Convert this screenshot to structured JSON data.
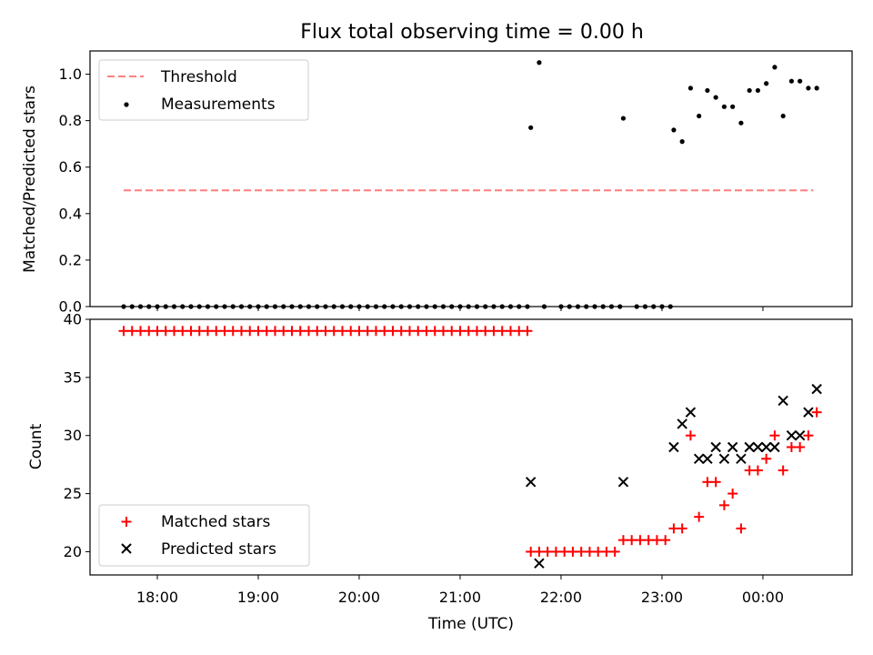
{
  "chart_data": [
    {
      "type": "scatter",
      "title": "Flux total observing time = 0.00 h",
      "ylabel": "Matched/Predicted stars",
      "xlabel": "",
      "x_is_time_utc": true,
      "xlim": [
        "17:20",
        "00:53"
      ],
      "ylim": [
        0,
        1.1
      ],
      "yticks": [
        "0.0",
        "0.2",
        "0.4",
        "0.6",
        "0.8",
        "1.0"
      ],
      "grid": false,
      "legend_loc": "upper left",
      "threshold": {
        "name": "Threshold",
        "value": 0.5,
        "x_range": [
          "17:40",
          "00:30"
        ],
        "color": "#ff7f7f",
        "style": "dashed"
      },
      "series": [
        {
          "name": "Measurements",
          "color": "#000000",
          "points": [
            [
              "17:40",
              0
            ],
            [
              "17:45",
              0
            ],
            [
              "17:50",
              0
            ],
            [
              "17:55",
              0
            ],
            [
              "18:00",
              0
            ],
            [
              "18:05",
              0
            ],
            [
              "18:10",
              0
            ],
            [
              "18:15",
              0
            ],
            [
              "18:20",
              0
            ],
            [
              "18:25",
              0
            ],
            [
              "18:30",
              0
            ],
            [
              "18:35",
              0
            ],
            [
              "18:40",
              0
            ],
            [
              "18:45",
              0
            ],
            [
              "18:50",
              0
            ],
            [
              "18:55",
              0
            ],
            [
              "19:00",
              0
            ],
            [
              "19:05",
              0
            ],
            [
              "19:10",
              0
            ],
            [
              "19:15",
              0
            ],
            [
              "19:20",
              0
            ],
            [
              "19:25",
              0
            ],
            [
              "19:30",
              0
            ],
            [
              "19:35",
              0
            ],
            [
              "19:40",
              0
            ],
            [
              "19:45",
              0
            ],
            [
              "19:50",
              0
            ],
            [
              "19:55",
              0
            ],
            [
              "20:00",
              0
            ],
            [
              "20:05",
              0
            ],
            [
              "20:10",
              0
            ],
            [
              "20:15",
              0
            ],
            [
              "20:20",
              0
            ],
            [
              "20:25",
              0
            ],
            [
              "20:30",
              0
            ],
            [
              "20:35",
              0
            ],
            [
              "20:40",
              0
            ],
            [
              "20:45",
              0
            ],
            [
              "20:50",
              0
            ],
            [
              "20:55",
              0
            ],
            [
              "21:00",
              0
            ],
            [
              "21:05",
              0
            ],
            [
              "21:10",
              0
            ],
            [
              "21:15",
              0
            ],
            [
              "21:20",
              0
            ],
            [
              "21:25",
              0
            ],
            [
              "21:30",
              0
            ],
            [
              "21:35",
              0
            ],
            [
              "21:40",
              0
            ],
            [
              "21:42",
              0.77
            ],
            [
              "21:47",
              1.05
            ],
            [
              "21:50",
              0
            ],
            [
              "22:00",
              0
            ],
            [
              "22:05",
              0
            ],
            [
              "22:10",
              0
            ],
            [
              "22:15",
              0
            ],
            [
              "22:20",
              0
            ],
            [
              "22:25",
              0
            ],
            [
              "22:30",
              0
            ],
            [
              "22:35",
              0
            ],
            [
              "22:37",
              0.81
            ],
            [
              "22:45",
              0
            ],
            [
              "22:50",
              0
            ],
            [
              "22:55",
              0
            ],
            [
              "23:00",
              0
            ],
            [
              "23:05",
              0
            ],
            [
              "23:07",
              0.76
            ],
            [
              "23:12",
              0.71
            ],
            [
              "23:17",
              0.94
            ],
            [
              "23:22",
              0.82
            ],
            [
              "23:27",
              0.93
            ],
            [
              "23:32",
              0.9
            ],
            [
              "23:37",
              0.86
            ],
            [
              "23:42",
              0.86
            ],
            [
              "23:47",
              0.79
            ],
            [
              "23:52",
              0.93
            ],
            [
              "23:57",
              0.93
            ],
            [
              "00:02",
              0.96
            ],
            [
              "00:07",
              1.03
            ],
            [
              "00:12",
              0.82
            ],
            [
              "00:17",
              0.97
            ],
            [
              "00:22",
              0.97
            ],
            [
              "00:27",
              0.94
            ],
            [
              "00:32",
              0.94
            ]
          ]
        }
      ]
    },
    {
      "type": "scatter",
      "title": "",
      "ylabel": "Count",
      "xlabel": "Time (UTC)",
      "x_is_time_utc": true,
      "xlim": [
        "17:20",
        "00:53"
      ],
      "ylim": [
        18.0,
        40
      ],
      "yticks": [
        "20",
        "25",
        "30",
        "35",
        "40"
      ],
      "xticks": [
        "18:00",
        "19:00",
        "20:00",
        "21:00",
        "22:00",
        "23:00",
        "00:00"
      ],
      "grid": false,
      "legend_loc": "lower left",
      "series": [
        {
          "name": "Matched stars",
          "marker": "plus",
          "color": "#ff0000",
          "points": [
            [
              "17:40",
              39
            ],
            [
              "17:45",
              39
            ],
            [
              "17:50",
              39
            ],
            [
              "17:55",
              39
            ],
            [
              "18:00",
              39
            ],
            [
              "18:05",
              39
            ],
            [
              "18:10",
              39
            ],
            [
              "18:15",
              39
            ],
            [
              "18:20",
              39
            ],
            [
              "18:25",
              39
            ],
            [
              "18:30",
              39
            ],
            [
              "18:35",
              39
            ],
            [
              "18:40",
              39
            ],
            [
              "18:45",
              39
            ],
            [
              "18:50",
              39
            ],
            [
              "18:55",
              39
            ],
            [
              "19:00",
              39
            ],
            [
              "19:05",
              39
            ],
            [
              "19:10",
              39
            ],
            [
              "19:15",
              39
            ],
            [
              "19:20",
              39
            ],
            [
              "19:25",
              39
            ],
            [
              "19:30",
              39
            ],
            [
              "19:35",
              39
            ],
            [
              "19:40",
              39
            ],
            [
              "19:45",
              39
            ],
            [
              "19:50",
              39
            ],
            [
              "19:55",
              39
            ],
            [
              "20:00",
              39
            ],
            [
              "20:05",
              39
            ],
            [
              "20:10",
              39
            ],
            [
              "20:15",
              39
            ],
            [
              "20:20",
              39
            ],
            [
              "20:25",
              39
            ],
            [
              "20:30",
              39
            ],
            [
              "20:35",
              39
            ],
            [
              "20:40",
              39
            ],
            [
              "20:45",
              39
            ],
            [
              "20:50",
              39
            ],
            [
              "20:55",
              39
            ],
            [
              "21:00",
              39
            ],
            [
              "21:05",
              39
            ],
            [
              "21:10",
              39
            ],
            [
              "21:15",
              39
            ],
            [
              "21:20",
              39
            ],
            [
              "21:25",
              39
            ],
            [
              "21:30",
              39
            ],
            [
              "21:35",
              39
            ],
            [
              "21:40",
              39
            ],
            [
              "21:42",
              20
            ],
            [
              "21:47",
              20
            ],
            [
              "21:52",
              20
            ],
            [
              "21:57",
              20
            ],
            [
              "22:02",
              20
            ],
            [
              "22:07",
              20
            ],
            [
              "22:12",
              20
            ],
            [
              "22:17",
              20
            ],
            [
              "22:22",
              20
            ],
            [
              "22:27",
              20
            ],
            [
              "22:32",
              20
            ],
            [
              "22:37",
              21
            ],
            [
              "22:42",
              21
            ],
            [
              "22:47",
              21
            ],
            [
              "22:52",
              21
            ],
            [
              "22:57",
              21
            ],
            [
              "23:02",
              21
            ],
            [
              "23:07",
              22
            ],
            [
              "23:12",
              22
            ],
            [
              "23:17",
              30
            ],
            [
              "23:22",
              23
            ],
            [
              "23:27",
              26
            ],
            [
              "23:32",
              26
            ],
            [
              "23:37",
              24
            ],
            [
              "23:42",
              25
            ],
            [
              "23:47",
              22
            ],
            [
              "23:52",
              27
            ],
            [
              "23:57",
              27
            ],
            [
              "00:02",
              28
            ],
            [
              "00:07",
              30
            ],
            [
              "00:12",
              27
            ],
            [
              "00:17",
              29
            ],
            [
              "00:22",
              29
            ],
            [
              "00:27",
              30
            ],
            [
              "00:32",
              32
            ]
          ]
        },
        {
          "name": "Predicted stars",
          "marker": "x",
          "color": "#000000",
          "points": [
            [
              "21:42",
              26
            ],
            [
              "21:47",
              19
            ],
            [
              "22:37",
              26
            ],
            [
              "23:07",
              29
            ],
            [
              "23:12",
              31
            ],
            [
              "23:17",
              32
            ],
            [
              "23:22",
              28
            ],
            [
              "23:27",
              28
            ],
            [
              "23:32",
              29
            ],
            [
              "23:37",
              28
            ],
            [
              "23:42",
              29
            ],
            [
              "23:47",
              28
            ],
            [
              "23:52",
              29
            ],
            [
              "23:57",
              29
            ],
            [
              "00:02",
              29
            ],
            [
              "00:07",
              29
            ],
            [
              "00:12",
              33
            ],
            [
              "00:17",
              30
            ],
            [
              "00:22",
              30
            ],
            [
              "00:27",
              32
            ],
            [
              "00:32",
              34
            ]
          ]
        }
      ]
    }
  ]
}
